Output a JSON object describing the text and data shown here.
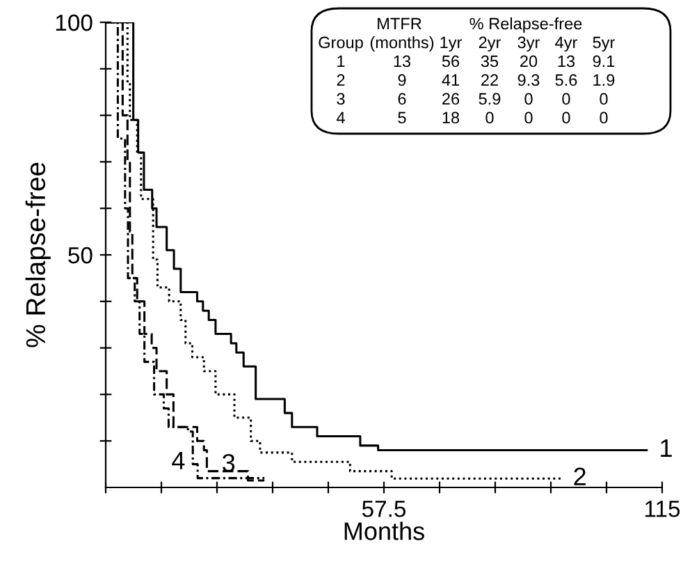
{
  "chart_data": {
    "type": "step",
    "xlabel": "Months",
    "ylabel": "% Relapse-free",
    "xlim": [
      0,
      115
    ],
    "ylim": [
      0,
      100
    ],
    "xticks": [
      {
        "value": 0,
        "label": null
      },
      {
        "value": 11.5,
        "label": null
      },
      {
        "value": 23,
        "label": null
      },
      {
        "value": 34.5,
        "label": null
      },
      {
        "value": 46,
        "label": null
      },
      57.5,
      {
        "value": 69,
        "label": null
      },
      {
        "value": 80.5,
        "label": null
      },
      {
        "value": 92,
        "label": null
      },
      {
        "value": 103.5,
        "label": null
      },
      115
    ],
    "yticks": [
      {
        "value": 10,
        "label": null
      },
      {
        "value": 20,
        "label": null
      },
      {
        "value": 30,
        "label": null
      },
      {
        "value": 40,
        "label": null
      },
      50,
      {
        "value": 60,
        "label": null
      },
      {
        "value": 70,
        "label": null
      },
      {
        "value": 80,
        "label": null
      },
      {
        "value": 90,
        "label": null
      },
      100
    ],
    "grid": false,
    "series": [
      {
        "name": "1",
        "color": "#000000",
        "line_style": "solid",
        "x": [
          0,
          5.7,
          6.7,
          7.9,
          9.6,
          10.5,
          12.6,
          14.1,
          15.5,
          18.9,
          20.1,
          21.3,
          22.7,
          25.9,
          27,
          28.5,
          31,
          37,
          38.5,
          43.7,
          52.6,
          56.3,
          111.8
        ],
        "values": [
          100,
          79,
          72,
          64,
          60,
          56,
          51,
          47,
          42,
          40,
          38,
          36,
          33,
          31,
          29,
          26,
          19,
          16,
          13,
          11,
          9,
          8,
          8
        ]
      },
      {
        "name": "2",
        "color": "#000000",
        "line_style": "dotted",
        "x": [
          0,
          4.5,
          5,
          6.5,
          7.3,
          9.8,
          10.7,
          13.1,
          15.5,
          16.5,
          17.9,
          20.3,
          22.7,
          26.6,
          30,
          31.9,
          35.7,
          38.5,
          50.5,
          59.1,
          94
        ],
        "values": [
          100,
          87,
          79,
          72,
          62,
          49,
          43,
          40,
          36,
          31,
          28,
          25,
          20,
          15,
          10,
          7.5,
          7.5,
          5.5,
          3.5,
          1.9,
          1.9
        ]
      },
      {
        "name": "3",
        "color": "#000000",
        "line_style": "dashed",
        "x": [
          0,
          3.5,
          4.5,
          5,
          5.5,
          6.5,
          8,
          9.5,
          10.5,
          11.5,
          12.6,
          14,
          18.9,
          20.3,
          20.9,
          29.4,
          32.8
        ],
        "values": [
          100,
          80,
          70,
          55,
          45,
          40,
          33,
          30,
          25,
          25,
          20,
          13,
          10,
          8,
          3.5,
          1.5,
          1.5
        ]
      },
      {
        "name": "4",
        "color": "#000000",
        "line_style": "dashdot",
        "x": [
          0,
          2.5,
          4,
          4.6,
          6,
          7,
          8,
          10,
          12,
          13,
          17,
          18,
          19,
          32.8
        ],
        "values": [
          100,
          75,
          60,
          45,
          40,
          33,
          27,
          20,
          17,
          13,
          12,
          5,
          2,
          2
        ]
      }
    ],
    "annotations": [
      "MTFR  % Relapse-free",
      "Group  (months)  1yr  2yr  3yr  4yr  5yr",
      "1  13  56  35  20  13  9.1",
      "2  9  41  22  9.3  5.6  1.9",
      "3  6  26  5.9  0  0  0",
      "4  5  18  0  0  0  0"
    ]
  }
}
